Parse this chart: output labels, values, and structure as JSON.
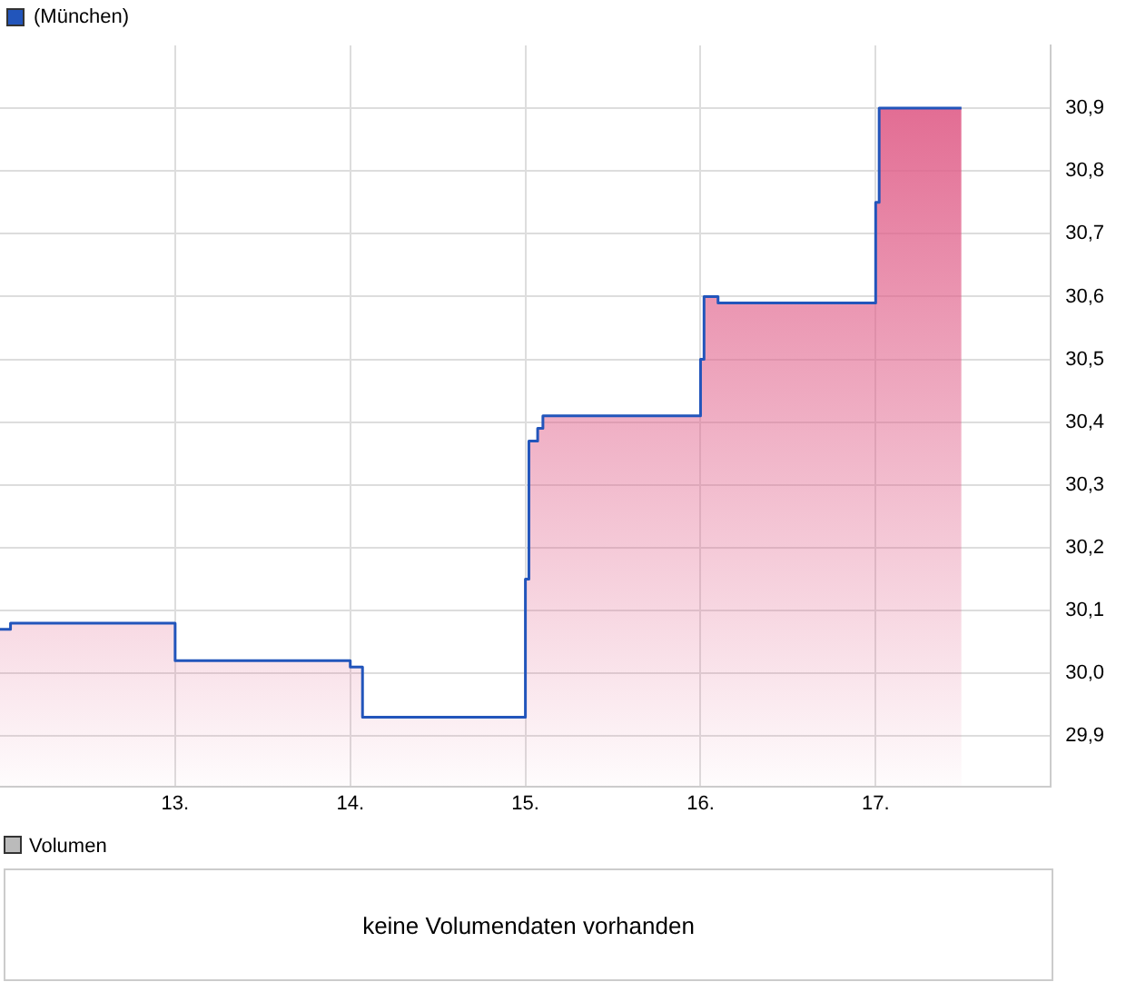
{
  "chart_data": [
    {
      "type": "area",
      "series": [
        {
          "name": "(München)",
          "color": "#2255bb",
          "x": [
            12.0,
            12.06,
            12.06,
            13.0,
            13.0,
            14.0,
            14.0,
            14.07,
            14.07,
            15.0,
            15.0,
            15.02,
            15.02,
            15.07,
            15.07,
            15.1,
            15.1,
            16.0,
            16.0,
            16.02,
            16.02,
            16.1,
            16.1,
            17.0,
            17.0,
            17.02,
            17.02,
            17.49
          ],
          "values": [
            30.07,
            30.07,
            30.08,
            30.08,
            30.02,
            30.02,
            30.01,
            30.01,
            29.93,
            29.93,
            30.15,
            30.15,
            30.37,
            30.37,
            30.39,
            30.39,
            30.41,
            30.41,
            30.5,
            30.5,
            30.6,
            30.6,
            30.59,
            30.59,
            30.75,
            30.75,
            30.9,
            30.9
          ]
        }
      ],
      "xlim": [
        12,
        18
      ],
      "xticks": [
        {
          "value": 13,
          "label": "13."
        },
        {
          "value": 14,
          "label": "14."
        },
        {
          "value": 15,
          "label": "15."
        },
        {
          "value": 16,
          "label": "16."
        },
        {
          "value": 17,
          "label": "17."
        }
      ],
      "ylim": [
        29.82,
        31.0
      ],
      "yticks": [
        {
          "value": 29.9,
          "label": "29,9"
        },
        {
          "value": 30.0,
          "label": "30,0"
        },
        {
          "value": 30.1,
          "label": "30,1"
        },
        {
          "value": 30.2,
          "label": "30,2"
        },
        {
          "value": 30.3,
          "label": "30,3"
        },
        {
          "value": 30.4,
          "label": "30,4"
        },
        {
          "value": 30.5,
          "label": "30,5"
        },
        {
          "value": 30.6,
          "label": "30,6"
        },
        {
          "value": 30.7,
          "label": "30,7"
        },
        {
          "value": 30.8,
          "label": "30,8"
        },
        {
          "value": 30.9,
          "label": "30,9"
        }
      ],
      "grid": true,
      "legend": "top left",
      "marker": "none"
    },
    {
      "type": "other",
      "title": "Volumen",
      "annotations": [
        "keine Volumendaten vorhanden"
      ]
    }
  ]
}
